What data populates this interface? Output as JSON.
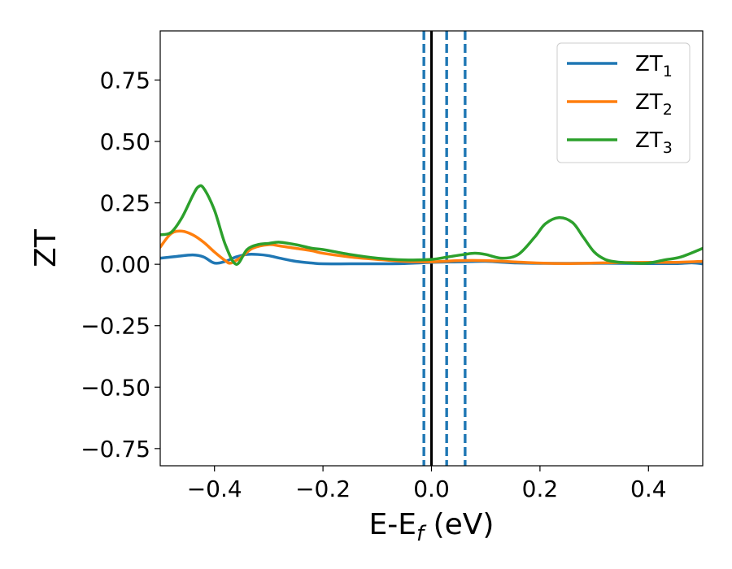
{
  "chart_data": {
    "type": "line",
    "title": "",
    "xlabel": "E-E",
    "xlabel_sub": "f",
    "xlabel_unit": " (eV)",
    "ylabel": "ZT",
    "xlim": [
      -0.5,
      0.5
    ],
    "ylim": [
      -0.82,
      0.95
    ],
    "x_ticks": [
      -0.4,
      -0.2,
      0.0,
      0.2,
      0.4
    ],
    "x_tick_labels": [
      "−0.4",
      "−0.2",
      "0.0",
      "0.2",
      "0.4"
    ],
    "y_ticks": [
      0.75,
      0.5,
      0.25,
      0.0,
      -0.25,
      -0.5,
      -0.75
    ],
    "y_tick_labels": [
      "0.75",
      "0.50",
      "0.25",
      "0.00",
      "−0.25",
      "−0.50",
      "−0.75"
    ],
    "grid": false,
    "legend_position": "top-right",
    "vertical_lines": [
      {
        "x": -0.014,
        "style": "dashed",
        "color": "#1f77b4"
      },
      {
        "x": 0.028,
        "style": "dashed",
        "color": "#1f77b4"
      },
      {
        "x": 0.062,
        "style": "dashed",
        "color": "#1f77b4"
      },
      {
        "x": 0.0,
        "style": "solid",
        "color": "#000000"
      }
    ],
    "series": [
      {
        "name": "ZT",
        "name_sub": "1",
        "color": "#1f77b4",
        "x": [
          -0.5,
          -0.47,
          -0.44,
          -0.42,
          -0.4,
          -0.38,
          -0.36,
          -0.34,
          -0.32,
          -0.3,
          -0.28,
          -0.25,
          -0.22,
          -0.2,
          -0.15,
          -0.1,
          -0.05,
          0.0,
          0.05,
          0.1,
          0.15,
          0.2,
          0.25,
          0.3,
          0.35,
          0.4,
          0.45,
          0.48,
          0.5
        ],
        "y": [
          0.025,
          0.032,
          0.038,
          0.03,
          0.005,
          0.012,
          0.03,
          0.04,
          0.04,
          0.035,
          0.025,
          0.012,
          0.005,
          0.002,
          0.002,
          0.002,
          0.003,
          0.008,
          0.01,
          0.012,
          0.006,
          0.004,
          0.004,
          0.004,
          0.004,
          0.003,
          0.003,
          0.006,
          0.002
        ]
      },
      {
        "name": "ZT",
        "name_sub": "2",
        "color": "#ff7f0e",
        "x": [
          -0.5,
          -0.48,
          -0.46,
          -0.44,
          -0.42,
          -0.4,
          -0.38,
          -0.37,
          -0.35,
          -0.33,
          -0.3,
          -0.28,
          -0.25,
          -0.22,
          -0.2,
          -0.15,
          -0.1,
          -0.05,
          0.0,
          0.05,
          0.1,
          0.15,
          0.2,
          0.25,
          0.3,
          0.35,
          0.4,
          0.45,
          0.5
        ],
        "y": [
          0.07,
          0.125,
          0.135,
          0.12,
          0.09,
          0.05,
          0.015,
          0.005,
          0.03,
          0.065,
          0.08,
          0.075,
          0.065,
          0.055,
          0.045,
          0.03,
          0.02,
          0.012,
          0.01,
          0.015,
          0.015,
          0.01,
          0.005,
          0.003,
          0.005,
          0.007,
          0.008,
          0.008,
          0.012
        ]
      },
      {
        "name": "ZT",
        "name_sub": "3",
        "color": "#2ca02c",
        "x": [
          -0.5,
          -0.48,
          -0.46,
          -0.44,
          -0.43,
          -0.42,
          -0.4,
          -0.38,
          -0.36,
          -0.34,
          -0.32,
          -0.3,
          -0.28,
          -0.25,
          -0.22,
          -0.2,
          -0.15,
          -0.1,
          -0.05,
          0.0,
          0.03,
          0.06,
          0.08,
          0.1,
          0.13,
          0.16,
          0.19,
          0.21,
          0.235,
          0.26,
          0.28,
          0.3,
          0.32,
          0.34,
          0.37,
          0.4,
          0.43,
          0.46,
          0.5
        ],
        "y": [
          0.12,
          0.13,
          0.19,
          0.28,
          0.315,
          0.31,
          0.22,
          0.08,
          0.0,
          0.06,
          0.08,
          0.085,
          0.09,
          0.08,
          0.065,
          0.06,
          0.04,
          0.025,
          0.018,
          0.02,
          0.03,
          0.04,
          0.045,
          0.04,
          0.025,
          0.04,
          0.11,
          0.165,
          0.19,
          0.17,
          0.11,
          0.05,
          0.02,
          0.01,
          0.005,
          0.005,
          0.018,
          0.03,
          0.065
        ]
      }
    ]
  }
}
